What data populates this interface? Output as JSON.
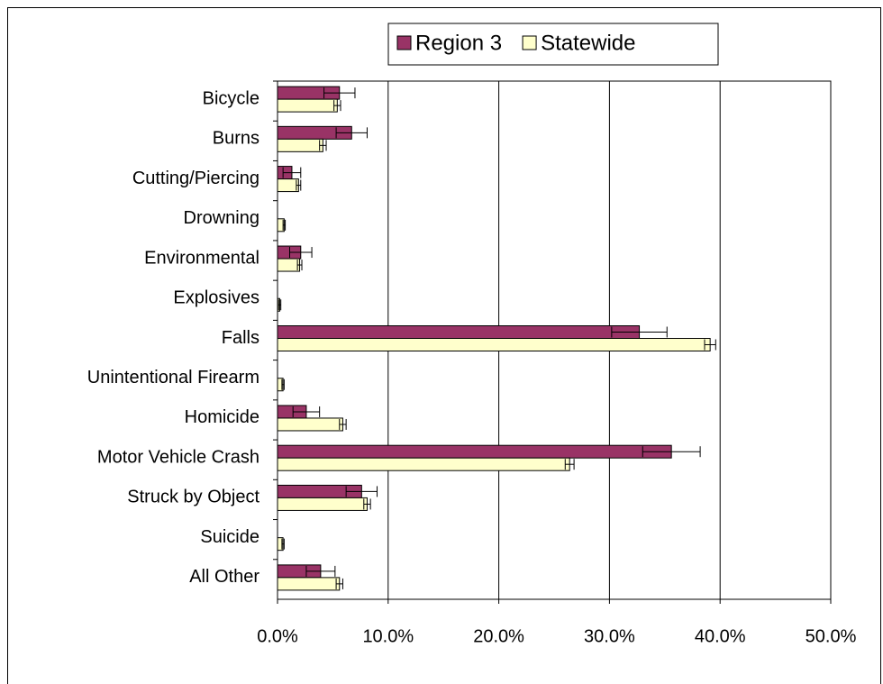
{
  "chart_data": {
    "type": "bar",
    "orientation": "horizontal",
    "categories": [
      "Bicycle",
      "Burns",
      "Cutting/Piercing",
      "Drowning",
      "Environmental",
      "Explosives",
      "Falls",
      "Unintentional Firearm",
      "Homicide",
      "Motor Vehicle Crash",
      "Struck by Object",
      "Suicide",
      "All Other"
    ],
    "series": [
      {
        "name": "Region 3",
        "color": "#993366",
        "values": [
          5.6,
          6.7,
          1.3,
          0,
          2.1,
          0,
          32.7,
          0,
          2.6,
          35.6,
          7.6,
          0,
          3.9
        ],
        "errors": [
          1.4,
          1.4,
          0.8,
          0,
          1.0,
          0,
          2.5,
          0,
          1.2,
          2.6,
          1.4,
          0,
          1.3
        ]
      },
      {
        "name": "Statewide",
        "color": "#ffffcc",
        "values": [
          5.4,
          4.1,
          1.9,
          0.6,
          2.0,
          0.2,
          39.1,
          0.5,
          5.9,
          26.4,
          8.1,
          0.5,
          5.6
        ],
        "errors": [
          0.3,
          0.3,
          0.2,
          0.1,
          0.2,
          0.1,
          0.5,
          0.1,
          0.3,
          0.4,
          0.3,
          0.1,
          0.3
        ]
      }
    ],
    "xlim": [
      0,
      50
    ],
    "xticks": [
      {
        "value": 0,
        "label": "0.0%"
      },
      {
        "value": 10,
        "label": "10.0%"
      },
      {
        "value": 20,
        "label": "20.0%"
      },
      {
        "value": 30,
        "label": "30.0%"
      },
      {
        "value": 40,
        "label": "40.0%"
      },
      {
        "value": 50,
        "label": "50.0%"
      }
    ],
    "grid": true,
    "legend": "top"
  }
}
